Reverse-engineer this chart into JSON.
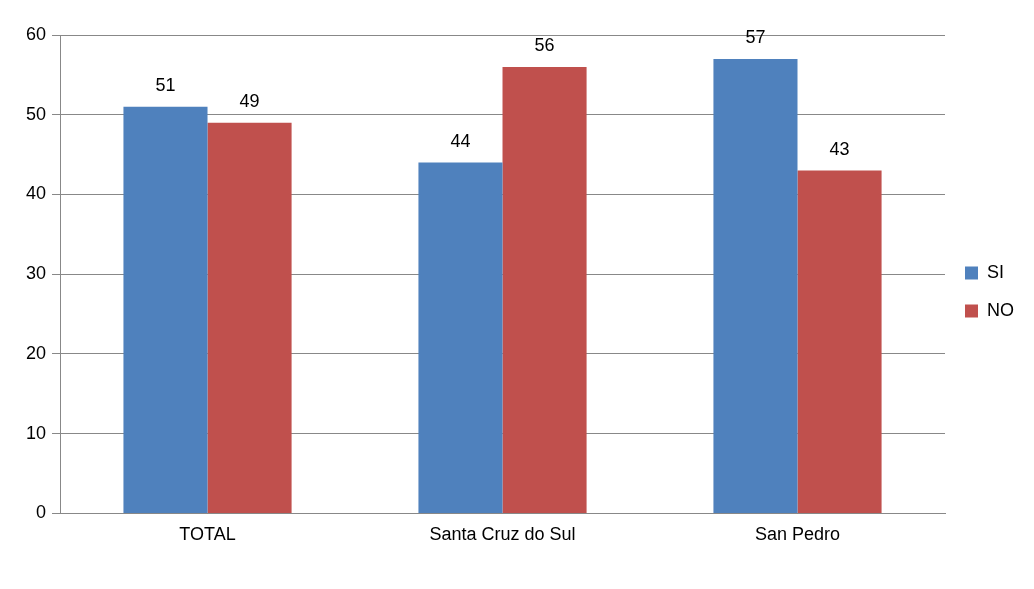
{
  "chart_data": {
    "type": "bar",
    "categories": [
      "TOTAL",
      "Santa Cruz do Sul",
      "San Pedro"
    ],
    "series": [
      {
        "name": "SI",
        "color": "#4f81bd",
        "values": [
          51,
          44,
          57
        ]
      },
      {
        "name": "NO",
        "color": "#c0504d",
        "values": [
          49,
          56,
          43
        ]
      }
    ],
    "ylim": [
      0,
      60
    ],
    "yticks": [
      0,
      10,
      20,
      30,
      40,
      50,
      60
    ],
    "grid": "y",
    "legend": "right",
    "data_labels": true
  }
}
